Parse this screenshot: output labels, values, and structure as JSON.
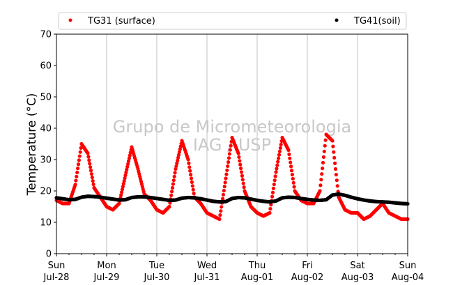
{
  "chart_data": {
    "type": "scatter",
    "title": "",
    "xlabel": "",
    "ylabel": "Temperature (°C)",
    "ylim": [
      0,
      70
    ],
    "yticks": [
      0,
      10,
      20,
      30,
      40,
      50,
      60,
      70
    ],
    "xlim_days": [
      "2019-07-28",
      "2019-08-04"
    ],
    "xticks": [
      {
        "day": "Sun",
        "date": "Jul-28"
      },
      {
        "day": "Mon",
        "date": "Jul-29"
      },
      {
        "day": "Tue",
        "date": "Jul-30"
      },
      {
        "day": "Wed",
        "date": "Jul-31"
      },
      {
        "day": "Thu",
        "date": "Aug-01"
      },
      {
        "day": "Fri",
        "date": "Aug-02"
      },
      {
        "day": "Sat",
        "date": "Aug-03"
      },
      {
        "day": "Sun",
        "date": "Aug-04"
      }
    ],
    "grid": "vertical",
    "legend_placement": "top",
    "watermark": [
      "Grupo de Micrometeorologia",
      "IAG / USP"
    ],
    "series": [
      {
        "name": "TG31 (surface)",
        "color": "#ff0000",
        "x": [
          "Jul-28 00:00",
          "Jul-28 03:00",
          "Jul-28 06:00",
          "Jul-28 09:00",
          "Jul-28 12:00",
          "Jul-28 15:00",
          "Jul-28 18:00",
          "Jul-28 21:00",
          "Jul-29 00:00",
          "Jul-29 03:00",
          "Jul-29 06:00",
          "Jul-29 09:00",
          "Jul-29 12:00",
          "Jul-29 15:00",
          "Jul-29 18:00",
          "Jul-29 21:00",
          "Jul-30 00:00",
          "Jul-30 03:00",
          "Jul-30 06:00",
          "Jul-30 09:00",
          "Jul-30 12:00",
          "Jul-30 15:00",
          "Jul-30 18:00",
          "Jul-30 21:00",
          "Jul-31 00:00",
          "Jul-31 03:00",
          "Jul-31 06:00",
          "Jul-31 09:00",
          "Jul-31 12:00",
          "Jul-31 15:00",
          "Jul-31 18:00",
          "Jul-31 21:00",
          "Aug-01 00:00",
          "Aug-01 03:00",
          "Aug-01 06:00",
          "Aug-01 09:00",
          "Aug-01 12:00",
          "Aug-01 15:00",
          "Aug-01 18:00",
          "Aug-01 21:00",
          "Aug-02 00:00",
          "Aug-02 03:00",
          "Aug-02 06:00",
          "Aug-02 09:00",
          "Aug-02 12:00",
          "Aug-02 15:00",
          "Aug-02 18:00",
          "Aug-02 21:00",
          "Aug-03 00:00",
          "Aug-03 03:00",
          "Aug-03 06:00",
          "Aug-03 09:00",
          "Aug-03 12:00",
          "Aug-03 15:00",
          "Aug-03 18:00",
          "Aug-03 21:00",
          "Aug-04 00:00"
        ],
        "values": [
          17,
          16,
          16,
          22,
          35,
          32,
          21,
          18,
          15,
          14,
          16,
          25,
          34,
          27,
          19,
          17,
          14,
          13,
          15,
          27,
          36,
          30,
          18,
          16,
          13,
          12,
          11,
          24,
          37,
          32,
          20,
          15,
          13,
          12,
          13,
          26,
          37,
          33,
          20,
          17,
          16,
          16,
          20,
          38,
          36,
          18,
          14,
          13,
          13,
          11,
          12,
          14,
          16,
          13,
          12,
          11,
          11
        ]
      },
      {
        "name": "TG41(soil)",
        "color": "#000000",
        "x": [
          "Jul-28 00:00",
          "Jul-28 03:00",
          "Jul-28 06:00",
          "Jul-28 09:00",
          "Jul-28 12:00",
          "Jul-28 15:00",
          "Jul-28 18:00",
          "Jul-28 21:00",
          "Jul-29 00:00",
          "Jul-29 03:00",
          "Jul-29 06:00",
          "Jul-29 09:00",
          "Jul-29 12:00",
          "Jul-29 15:00",
          "Jul-29 18:00",
          "Jul-29 21:00",
          "Jul-30 00:00",
          "Jul-30 03:00",
          "Jul-30 06:00",
          "Jul-30 09:00",
          "Jul-30 12:00",
          "Jul-30 15:00",
          "Jul-30 18:00",
          "Jul-30 21:00",
          "Jul-31 00:00",
          "Jul-31 03:00",
          "Jul-31 06:00",
          "Jul-31 09:00",
          "Jul-31 12:00",
          "Jul-31 15:00",
          "Jul-31 18:00",
          "Jul-31 21:00",
          "Aug-01 00:00",
          "Aug-01 03:00",
          "Aug-01 06:00",
          "Aug-01 09:00",
          "Aug-01 12:00",
          "Aug-01 15:00",
          "Aug-01 18:00",
          "Aug-01 21:00",
          "Aug-02 00:00",
          "Aug-02 03:00",
          "Aug-02 06:00",
          "Aug-02 09:00",
          "Aug-02 12:00",
          "Aug-02 15:00",
          "Aug-02 18:00",
          "Aug-02 21:00",
          "Aug-03 00:00",
          "Aug-03 03:00",
          "Aug-03 06:00",
          "Aug-03 09:00",
          "Aug-03 12:00",
          "Aug-03 15:00",
          "Aug-03 18:00",
          "Aug-03 21:00",
          "Aug-04 00:00"
        ],
        "values": [
          17.8,
          17.5,
          17.2,
          17.3,
          18.0,
          18.3,
          18.2,
          18.0,
          17.7,
          17.4,
          17.1,
          17.2,
          17.9,
          18.1,
          18.1,
          17.9,
          17.6,
          17.3,
          17.0,
          17.1,
          17.7,
          17.9,
          17.8,
          17.5,
          17.1,
          16.7,
          16.5,
          16.6,
          17.6,
          17.9,
          17.8,
          17.4,
          17.0,
          16.7,
          16.5,
          16.8,
          17.8,
          18.0,
          17.9,
          17.6,
          17.3,
          17.1,
          17.0,
          17.2,
          18.7,
          19.0,
          18.6,
          18.0,
          17.5,
          17.1,
          16.8,
          16.6,
          16.5,
          16.4,
          16.2,
          16.0,
          15.9
        ]
      }
    ]
  }
}
